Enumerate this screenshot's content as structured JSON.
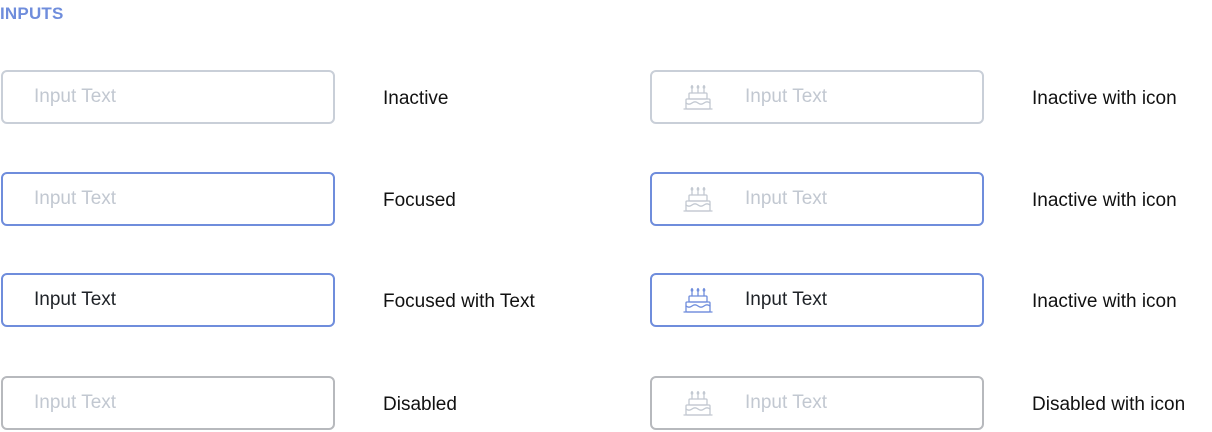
{
  "section_title": "INPUTS",
  "colors": {
    "accent": "#6f8ddc",
    "inactive_border": "#c9cfd8",
    "disabled_border": "#b7b9bd",
    "placeholder": "#c2c8d1",
    "text": "#1f2328",
    "icon_muted": "#c2c8d1",
    "icon_active": "#6f8ddc"
  },
  "inputs": [
    {
      "state": "inactive",
      "value": "Input Text",
      "caption": "Inactive"
    },
    {
      "state": "focused",
      "value": "Input Text",
      "caption": "Focused"
    },
    {
      "state": "focused-with-text",
      "value": "Input Text",
      "caption": "Focused with Text"
    },
    {
      "state": "disabled",
      "value": "Input Text",
      "caption": "Disabled"
    }
  ],
  "icon_inputs": [
    {
      "state": "inactive",
      "icon": "cake-icon",
      "value": "Input Text",
      "caption": "Inactive with icon"
    },
    {
      "state": "focused",
      "icon": "cake-icon",
      "value": "Input Text",
      "caption": "Inactive with icon"
    },
    {
      "state": "focused-with-text",
      "icon": "cake-icon",
      "value": "Input Text",
      "caption": "Inactive with icon"
    },
    {
      "state": "disabled",
      "icon": "cake-icon",
      "value": "Input Text",
      "caption": "Disabled with icon"
    }
  ]
}
